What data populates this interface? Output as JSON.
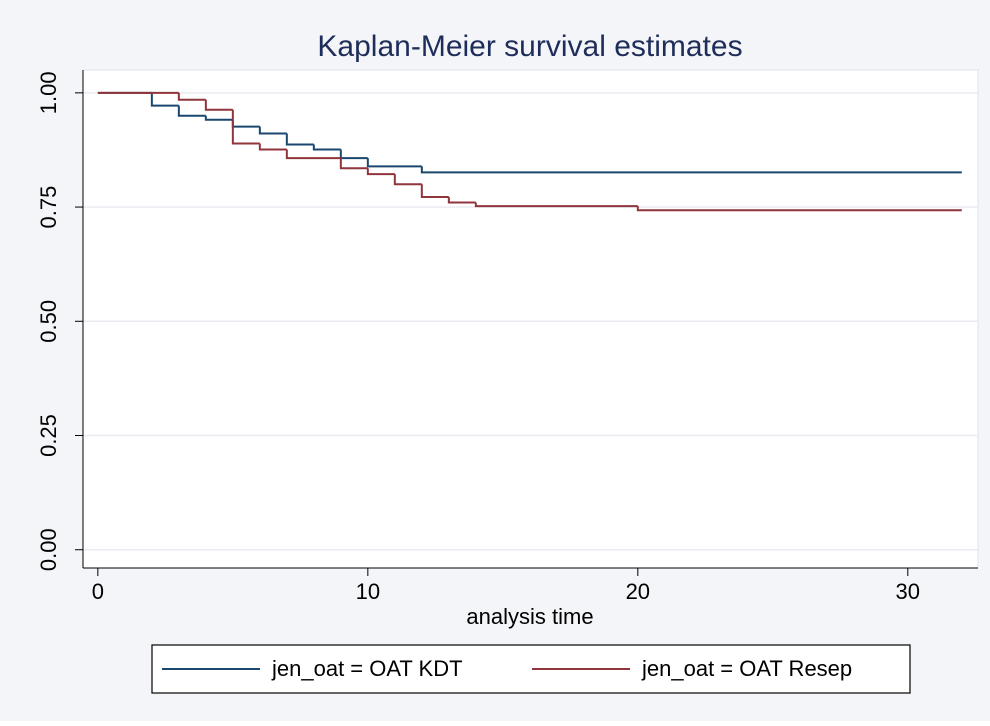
{
  "chart_data": {
    "type": "step",
    "title": "Kaplan-Meier survival estimates",
    "x_label": "analysis time",
    "xlim": [
      -0.55,
      32.6
    ],
    "ylim": [
      -0.04,
      1.05
    ],
    "xticks": [
      0,
      10,
      20,
      30
    ],
    "yticks": [
      {
        "value": 0,
        "label": "0.00"
      },
      {
        "value": 0.25,
        "label": "0.25"
      },
      {
        "value": 0.5,
        "label": "0.50"
      },
      {
        "value": 0.75,
        "label": "0.75"
      },
      {
        "value": 1,
        "label": "1.00"
      }
    ],
    "grid": true,
    "series": [
      {
        "name": "jen_oat = OAT KDT",
        "color": "#1a476f",
        "x": [
          0,
          2,
          3,
          4,
          5,
          6,
          7,
          8,
          9,
          10,
          12,
          32
        ],
        "values": [
          1,
          0.972,
          0.95,
          0.941,
          0.926,
          0.911,
          0.887,
          0.876,
          0.857,
          0.839,
          0.826,
          0.826
        ]
      },
      {
        "name": "jen_oat = OAT Resep",
        "color": "#90353b",
        "x": [
          0,
          3,
          4,
          5,
          6,
          7,
          9,
          10,
          11,
          12,
          13,
          14,
          20,
          32
        ],
        "values": [
          1,
          0.985,
          0.963,
          0.889,
          0.876,
          0.857,
          0.835,
          0.822,
          0.8,
          0.772,
          0.76,
          0.752,
          0.743,
          0.743
        ]
      }
    ]
  }
}
